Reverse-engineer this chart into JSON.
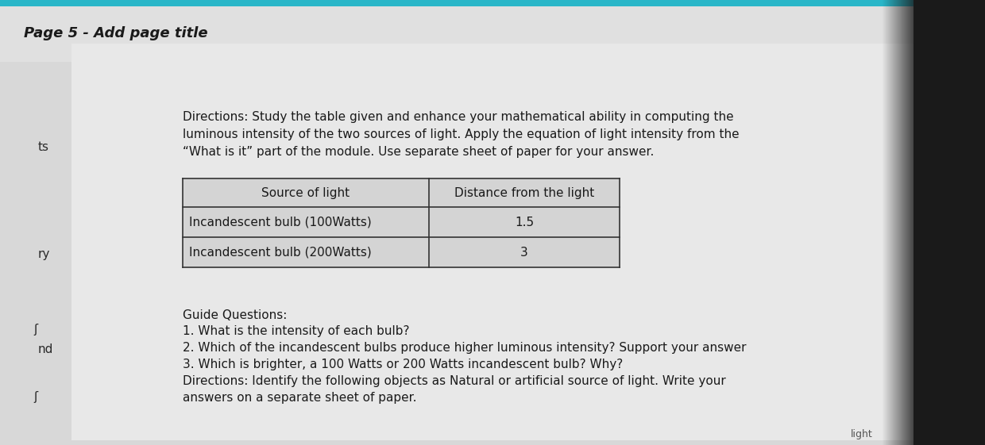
{
  "page_title": "Page 5 - Add page title",
  "directions_text_line1": "Directions: Study the table given and enhance your mathematical ability in computing the",
  "directions_text_line2": "luminous intensity of the two sources of light. Apply the equation of light intensity from the",
  "directions_text_line3": "“What is it” part of the module. Use separate sheet of paper for your answer.",
  "table_header": [
    "Source of light",
    "Distance from the light"
  ],
  "table_rows": [
    [
      "Incandescent bulb (100Watts)",
      "1.5"
    ],
    [
      "Incandescent bulb (200Watts)",
      "3"
    ]
  ],
  "guide_title": "Guide Questions:",
  "guide_questions": [
    "1. What is the intensity of each bulb?",
    "2. Which of the incandescent bulbs produce higher luminous intensity? Support your answer",
    "3. Which is brighter, a 100 Watts or 200 Watts incandescent bulb? Why?",
    "Directions: Identify the following objects as Natural or artificial source of light. Write your",
    "answers on a separate sheet of paper."
  ],
  "left_labels": [
    [
      48,
      185,
      "ts"
    ],
    [
      48,
      320,
      "ry"
    ],
    [
      42,
      415,
      "ʃ"
    ],
    [
      48,
      440,
      "nd"
    ],
    [
      42,
      500,
      "ʃ"
    ]
  ],
  "outer_bg": "#2a2a2a",
  "teal_strip_color": "#29b6c8",
  "page_bg": "#dcdcdc",
  "page_top_bg": "#d5d5d5",
  "content_bg": "#d8d8d8",
  "table_bg": "#d0d0d0",
  "table_border": "#333333",
  "text_color": "#1a1a1a",
  "title_fontsize": 13,
  "body_fontsize": 11
}
